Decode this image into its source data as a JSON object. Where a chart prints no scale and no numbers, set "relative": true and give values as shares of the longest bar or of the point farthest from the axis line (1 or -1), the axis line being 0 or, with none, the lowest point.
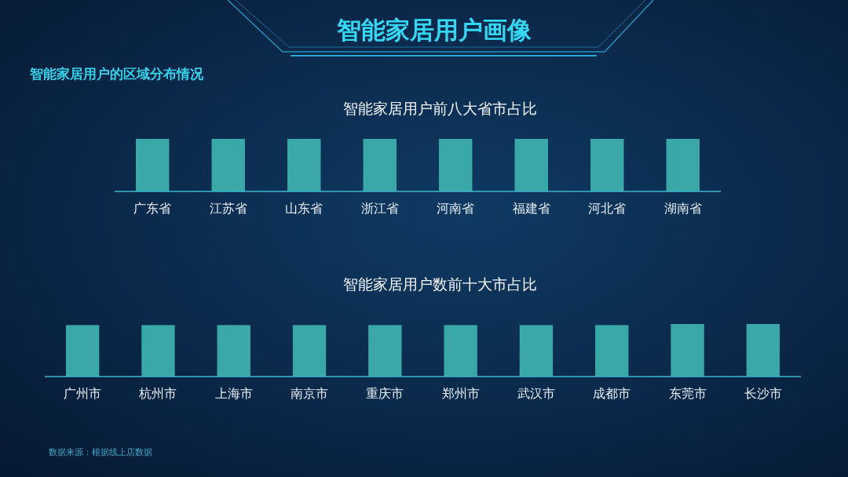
{
  "chart_data": [
    {
      "type": "other",
      "title": "智能家居用户画像",
      "subtitle": "智能家居用户的区域分布情况"
    },
    {
      "type": "bar",
      "title": "智能家居用户前八大省市占比",
      "categories": [
        "广东省",
        "江苏省",
        "山东省",
        "浙江省",
        "河南省",
        "福建省",
        "河北省",
        "湖南省"
      ],
      "values": [
        1,
        1,
        1,
        1,
        1,
        1,
        1,
        1
      ],
      "color": "#3aa8a8",
      "relative": true
    },
    {
      "type": "bar",
      "title": "智能家居用户数前十大市占比",
      "categories": [
        "广州市",
        "杭州市",
        "上海市",
        "南京市",
        "重庆市",
        "郑州市",
        "武汉市",
        "成都市",
        "东莞市",
        "长沙市"
      ],
      "values": [
        0.98,
        0.98,
        0.98,
        0.98,
        0.98,
        0.98,
        0.98,
        0.98,
        1,
        1
      ],
      "color": "#3aa8a8",
      "relative": true,
      "annotations": [
        "数据来源：根据线上店数据"
      ]
    }
  ]
}
